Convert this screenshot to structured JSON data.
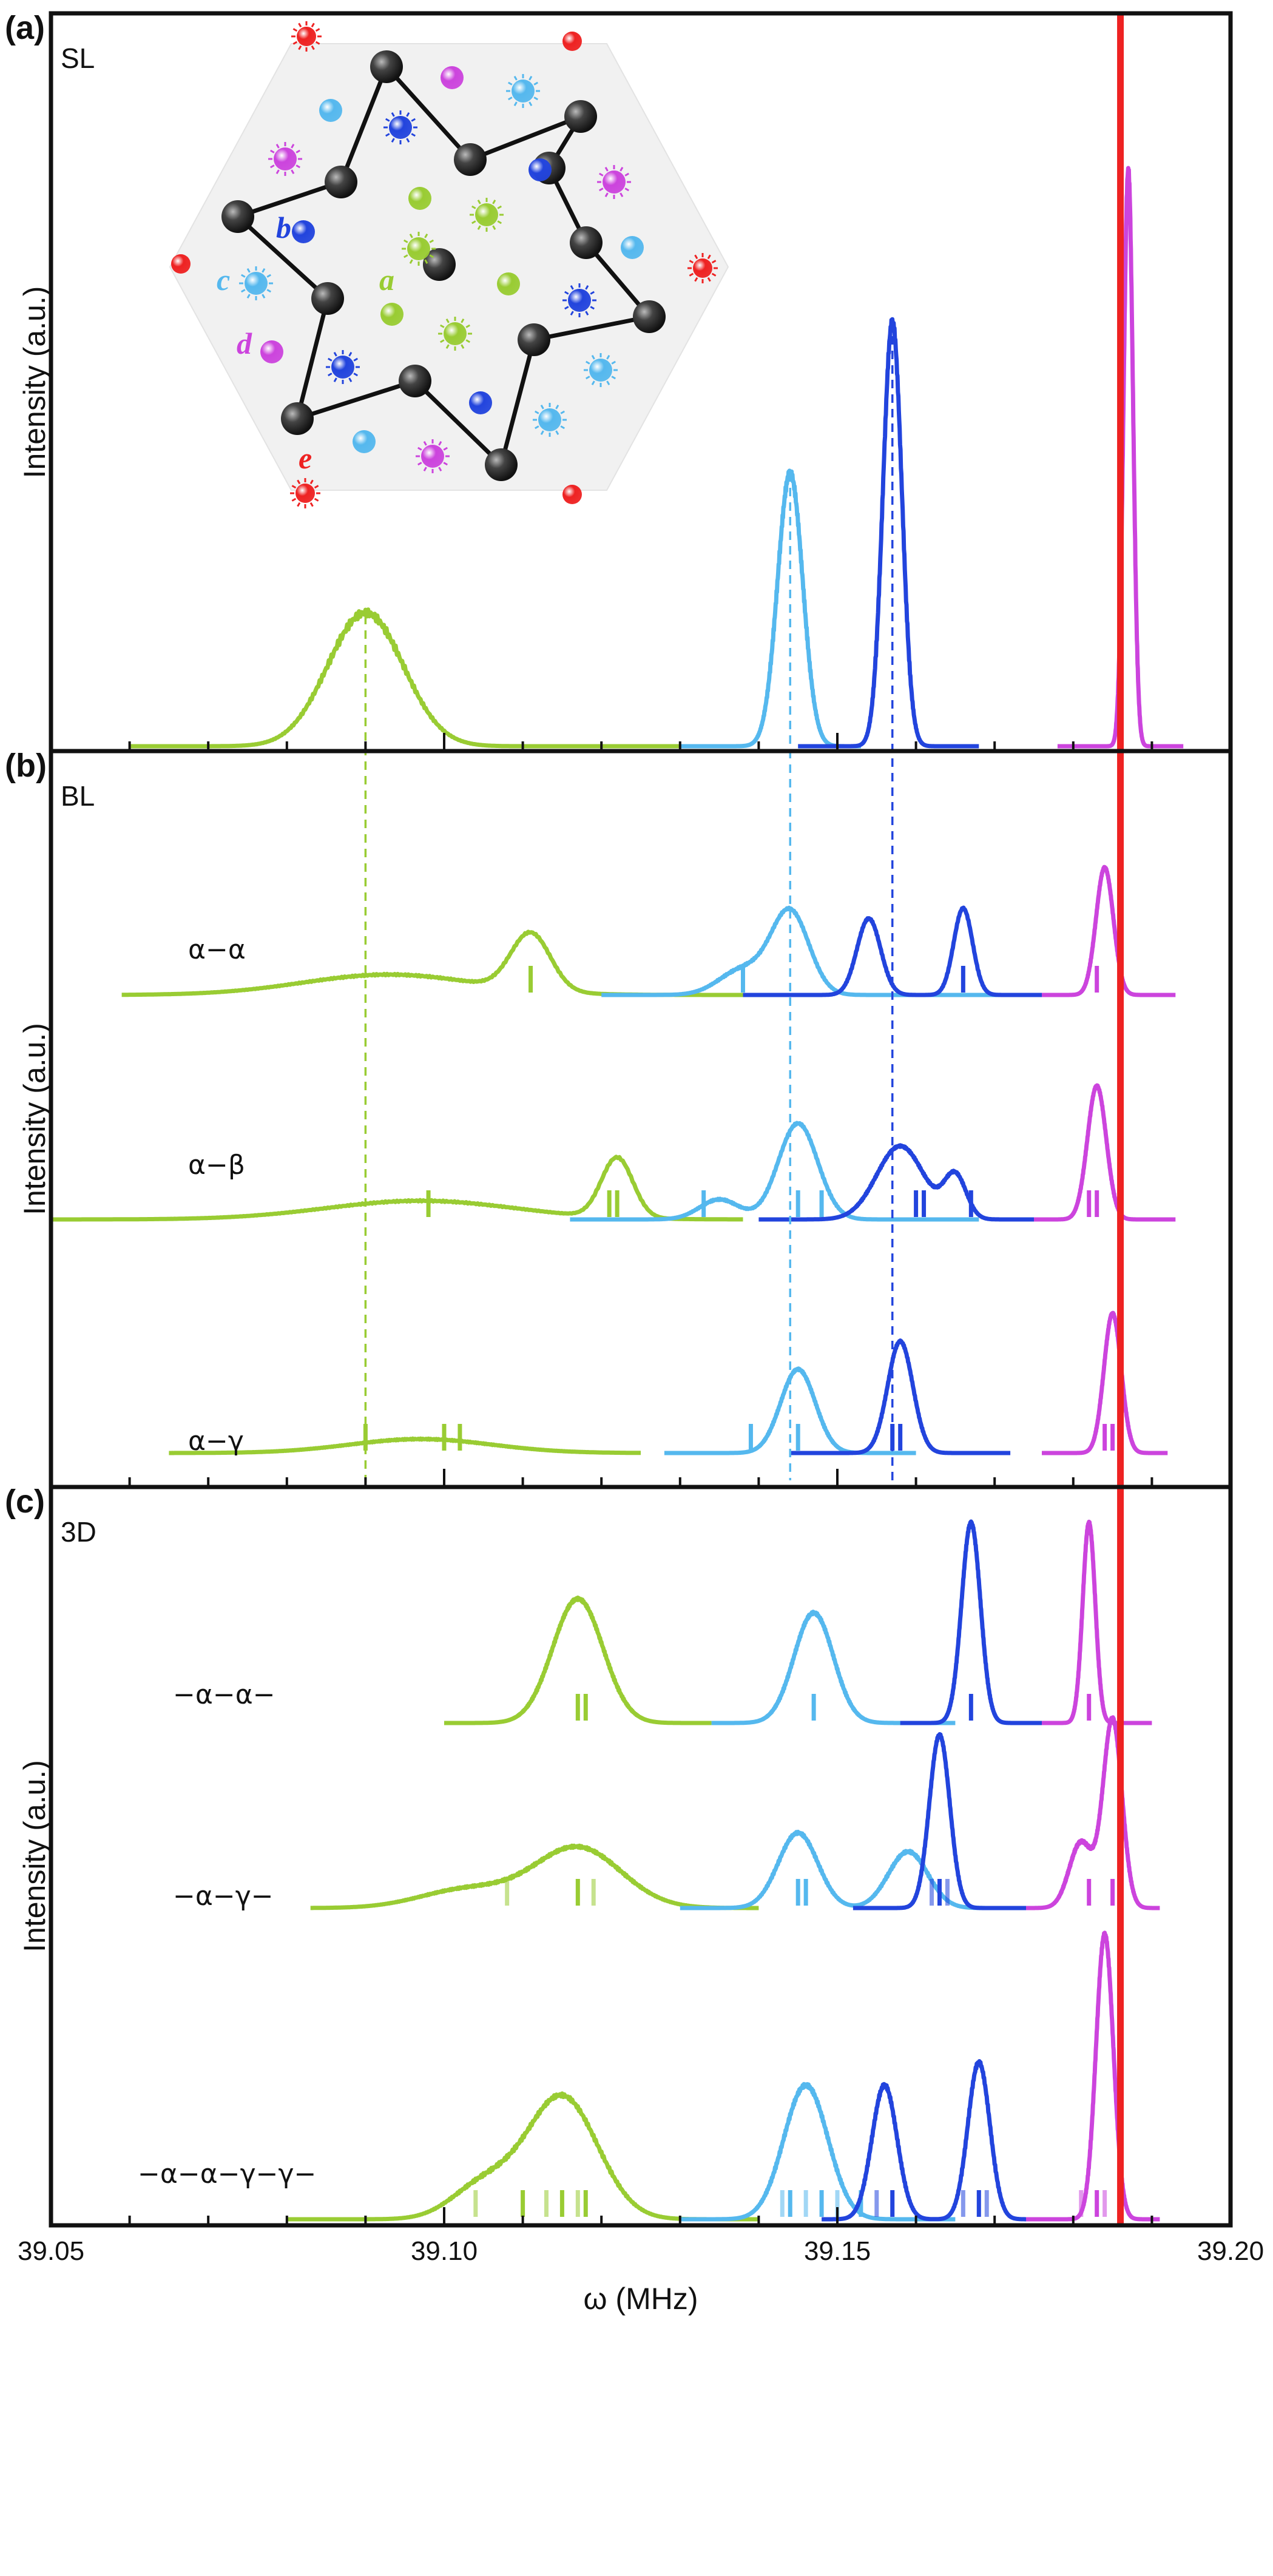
{
  "figure": {
    "xlabel": "ω (MHz)",
    "ylabel": "Intensity (a.u.)",
    "x_ticks": [
      "39.05",
      "39.10",
      "39.15",
      "39.20"
    ]
  },
  "colors": {
    "a": "#99cc33",
    "c": "#55b8ee",
    "b": "#2244dd",
    "d": "#cc44dd",
    "e": "#ee2222"
  },
  "inset": {
    "site_labels": {
      "a": "a",
      "b": "b",
      "c": "c",
      "d": "d",
      "e": "e"
    }
  },
  "chart_data": [
    {
      "type": "line",
      "panel": "(a)",
      "name": "SL",
      "xlabel": "ω (MHz)",
      "ylabel": "Intensity (a.u.)",
      "xlim": [
        39.05,
        39.2
      ],
      "ylim": [
        0,
        1
      ],
      "reference_line": 39.186,
      "dashed_guides": [
        39.09,
        39.144,
        39.157
      ],
      "series": [
        {
          "name": "SL",
          "color_key": "a",
          "range": [
            39.06,
            39.13
          ],
          "peaks": [
            [
              39.09,
              0.22,
              0.0048
            ]
          ],
          "sticks": []
        },
        {
          "name": "SL",
          "color_key": "c",
          "range": [
            39.13,
            39.153
          ],
          "peaks": [
            [
              39.144,
              0.45,
              0.0016
            ]
          ],
          "sticks": []
        },
        {
          "name": "SL",
          "color_key": "b",
          "range": [
            39.145,
            39.168
          ],
          "peaks": [
            [
              39.157,
              0.7,
              0.0012
            ]
          ],
          "sticks": []
        },
        {
          "name": "SL",
          "color_key": "d",
          "range": [
            39.178,
            39.194
          ],
          "peaks": [
            [
              39.187,
              0.95,
              0.0006
            ]
          ],
          "sticks": []
        }
      ]
    },
    {
      "type": "line",
      "panel": "(b)",
      "name": "BL",
      "xlabel": "ω (MHz)",
      "ylabel": "Intensity (a.u.)",
      "xlim": [
        39.05,
        39.2
      ],
      "ylim": [
        0,
        1
      ],
      "reference_line": 39.186,
      "dashed_guides": [
        39.09,
        39.144,
        39.157
      ],
      "rows": [
        {
          "label": "α−α",
          "series": [
            {
              "name": "α−α",
              "color_key": "a",
              "range": [
                39.059,
                39.14
              ],
              "peaks": [
                [
                  39.093,
                  0.16,
                  0.011
                ],
                [
                  39.111,
                  0.45,
                  0.0025
                ]
              ],
              "sticks": [
                39.111
              ]
            },
            {
              "name": "α−α",
              "color_key": "c",
              "range": [
                39.12,
                39.173
              ],
              "peaks": [
                [
                  39.144,
                  0.65,
                  0.0024
                ],
                [
                  39.138,
                  0.2,
                  0.003
                ]
              ],
              "sticks": [
                39.138
              ]
            },
            {
              "name": "α−α",
              "color_key": "b",
              "range": [
                39.138,
                39.176
              ],
              "peaks": [
                [
                  39.154,
                  0.6,
                  0.0015
                ],
                [
                  39.166,
                  0.68,
                  0.0012
                ]
              ],
              "sticks": [
                39.166
              ]
            },
            {
              "name": "α−α",
              "color_key": "d",
              "range": [
                39.176,
                39.193
              ],
              "peaks": [
                [
                  39.184,
                  1.0,
                  0.0011
                ]
              ],
              "sticks": [
                39.183
              ]
            }
          ]
        },
        {
          "label": "α−β",
          "series": [
            {
              "name": "α−β",
              "color_key": "a",
              "range": [
                39.05,
                39.138
              ],
              "peaks": [
                [
                  39.097,
                  0.14,
                  0.012
                ],
                [
                  39.122,
                  0.45,
                  0.002
                ]
              ],
              "sticks": [
                39.098,
                39.121,
                39.122
              ]
            },
            {
              "name": "α−β",
              "color_key": "c",
              "range": [
                39.116,
                39.168
              ],
              "peaks": [
                [
                  39.145,
                  0.72,
                  0.0025
                ],
                [
                  39.135,
                  0.15,
                  0.0025
                ]
              ],
              "sticks": [
                39.133,
                39.145,
                39.148
              ]
            },
            {
              "name": "α−β",
              "color_key": "b",
              "range": [
                39.14,
                39.176
              ],
              "peaks": [
                [
                  39.158,
                  0.55,
                  0.003
                ],
                [
                  39.165,
                  0.32,
                  0.0014
                ]
              ],
              "sticks": [
                39.16,
                39.161,
                39.167
              ]
            },
            {
              "name": "α−β",
              "color_key": "d",
              "range": [
                39.175,
                39.193
              ],
              "peaks": [
                [
                  39.183,
                  1.0,
                  0.0012
                ]
              ],
              "sticks": [
                39.182,
                39.183
              ]
            }
          ]
        },
        {
          "label": "α−γ",
          "series": [
            {
              "name": "α−γ",
              "color_key": "a",
              "range": [
                39.065,
                39.125
              ],
              "peaks": [
                [
                  39.097,
                  0.1,
                  0.009
                ]
              ],
              "sticks": [
                39.09,
                39.1,
                39.102
              ]
            },
            {
              "name": "α−γ",
              "color_key": "c",
              "range": [
                39.128,
                39.16
              ],
              "peaks": [
                [
                  39.145,
                  0.6,
                  0.0022
                ]
              ],
              "sticks": [
                39.139,
                39.145
              ]
            },
            {
              "name": "α−γ",
              "color_key": "b",
              "range": [
                39.144,
                39.172
              ],
              "peaks": [
                [
                  39.158,
                  0.8,
                  0.0016
                ]
              ],
              "sticks": [
                39.157,
                39.158
              ]
            },
            {
              "name": "α−γ",
              "color_key": "d",
              "range": [
                39.176,
                39.192
              ],
              "peaks": [
                [
                  39.185,
                  1.0,
                  0.0011
                ]
              ],
              "sticks": [
                39.184,
                39.185
              ]
            }
          ]
        }
      ]
    },
    {
      "type": "line",
      "panel": "(c)",
      "name": "3D",
      "xlabel": "ω (MHz)",
      "ylabel": "Intensity (a.u.)",
      "xlim": [
        39.05,
        39.2
      ],
      "ylim": [
        0,
        1
      ],
      "reference_line": 39.186,
      "rows": [
        {
          "label": "−α−α−",
          "series": [
            {
              "name": "−α−α−",
              "color_key": "a",
              "range": [
                39.1,
                39.134
              ],
              "peaks": [
                [
                  39.117,
                  0.62,
                  0.0032
                ]
              ],
              "sticks": [
                39.117,
                39.118
              ]
            },
            {
              "name": "−α−α−",
              "color_key": "c",
              "range": [
                39.134,
                39.165
              ],
              "peaks": [
                [
                  39.147,
                  0.55,
                  0.0025
                ]
              ],
              "sticks": [
                39.147
              ]
            },
            {
              "name": "−α−α−",
              "color_key": "b",
              "range": [
                39.158,
                39.176
              ],
              "peaks": [
                [
                  39.167,
                  1.0,
                  0.0012
                ]
              ],
              "sticks": [
                39.167
              ]
            },
            {
              "name": "−α−α−",
              "color_key": "d",
              "range": [
                39.176,
                39.19
              ],
              "peaks": [
                [
                  39.182,
                  1.0,
                  0.0008
                ]
              ],
              "sticks": [
                39.182
              ]
            }
          ]
        },
        {
          "label": "−α−γ−",
          "series": [
            {
              "name": "−α−γ−",
              "color_key": "a",
              "range": [
                39.083,
                39.14
              ],
              "peaks": [
                [
                  39.117,
                  0.32,
                  0.0055
                ],
                [
                  39.103,
                  0.1,
                  0.006
                ]
              ],
              "sticks": [
                39.108,
                39.117,
                39.119
              ]
            },
            {
              "name": "−α−γ−",
              "color_key": "c",
              "range": [
                39.13,
                39.175
              ],
              "peaks": [
                [
                  39.145,
                  0.4,
                  0.0025
                ],
                [
                  39.159,
                  0.3,
                  0.0025
                ]
              ],
              "sticks": [
                39.145,
                39.146
              ]
            },
            {
              "name": "−α−γ−",
              "color_key": "b",
              "range": [
                39.152,
                39.175
              ],
              "peaks": [
                [
                  39.163,
                  0.92,
                  0.0013
                ]
              ],
              "sticks": [
                39.162,
                39.163,
                39.164
              ]
            },
            {
              "name": "−α−γ−",
              "color_key": "d",
              "range": [
                39.174,
                39.191
              ],
              "peaks": [
                [
                  39.185,
                  1.0,
                  0.0012
                ],
                [
                  39.181,
                  0.35,
                  0.0015
                ]
              ],
              "sticks": [
                39.182,
                39.185
              ]
            }
          ]
        },
        {
          "label": "−α−α−γ−γ−",
          "series": [
            {
              "name": "−α−α−γ−γ−",
              "color_key": "a",
              "range": [
                39.08,
                39.14
              ],
              "peaks": [
                [
                  39.115,
                  0.43,
                  0.0045
                ],
                [
                  39.105,
                  0.12,
                  0.004
                ]
              ],
              "sticks": [
                39.104,
                39.11,
                39.113,
                39.115,
                39.117,
                39.118
              ]
            },
            {
              "name": "−α−α−γ−γ−",
              "color_key": "c",
              "range": [
                39.13,
                39.165
              ],
              "peaks": [
                [
                  39.146,
                  0.47,
                  0.0028
                ]
              ],
              "sticks": [
                39.143,
                39.144,
                39.146,
                39.148,
                39.15,
                39.153
              ]
            },
            {
              "name": "−α−α−γ−γ−",
              "color_key": "b",
              "range": [
                39.148,
                39.176
              ],
              "peaks": [
                [
                  39.156,
                  0.47,
                  0.0016
                ],
                [
                  39.168,
                  0.55,
                  0.0014
                ]
              ],
              "sticks": [
                39.155,
                39.157,
                39.166,
                39.168,
                39.169
              ]
            },
            {
              "name": "−α−α−γ−γ−",
              "color_key": "d",
              "range": [
                39.174,
                39.191
              ],
              "peaks": [
                [
                  39.184,
                  1.0,
                  0.0011
                ]
              ],
              "sticks": [
                39.181,
                39.183,
                39.184
              ]
            }
          ]
        }
      ]
    }
  ]
}
